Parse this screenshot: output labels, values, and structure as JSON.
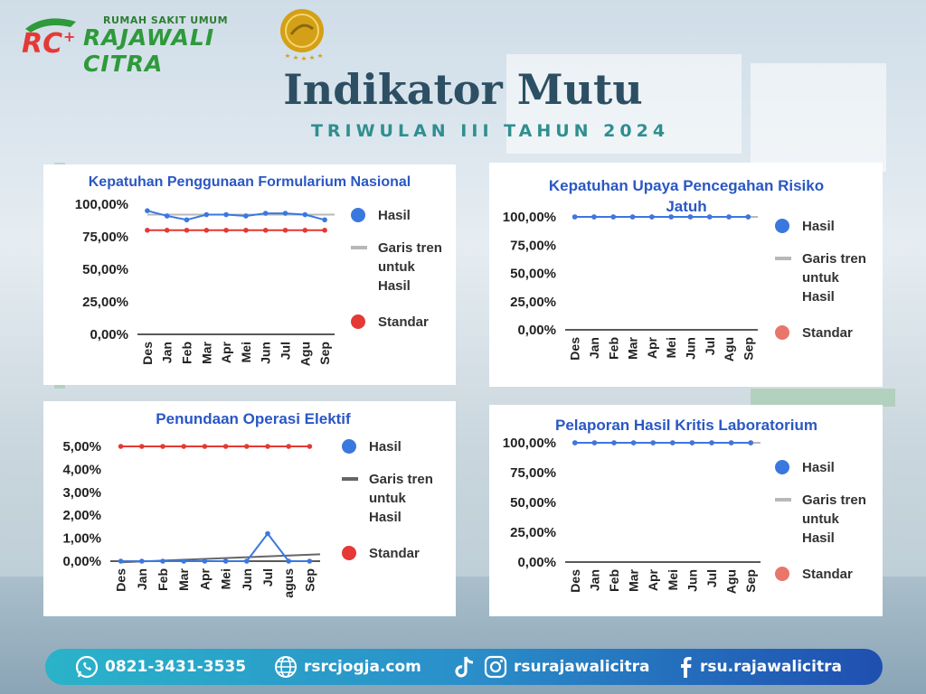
{
  "header": {
    "logo_sub": "RUMAH SAKIT UMUM",
    "logo_name": "RAJAWALI CITRA",
    "title": "Indikator Mutu",
    "subtitle": "TRIWULAN III TAHUN 2024"
  },
  "colors": {
    "hasil": "#3a78e0",
    "hasil_soft": "#e8766a",
    "standar": "#e53935",
    "trend_light": "#b8b8b8",
    "trend_dark": "#666666",
    "title_blue": "#2a57c4"
  },
  "legend": {
    "hasil": "Hasil",
    "trend": [
      "Garis tren",
      "untuk",
      "Hasil"
    ],
    "standar": "Standar"
  },
  "chart_data": [
    {
      "type": "line",
      "title": [
        "Kepatuhan Penggunaan Formularium Nasional"
      ],
      "categories": [
        "Des",
        "Jan",
        "Feb",
        "Mar",
        "Apr",
        "Mei",
        "Jun",
        "Jul",
        "Agu",
        "Sep"
      ],
      "ylim": [
        0,
        100
      ],
      "yticks": [
        "0,00%",
        "25,00%",
        "50,00%",
        "75,00%",
        "100,00%"
      ],
      "series": [
        {
          "name": "Hasil",
          "values": [
            95,
            91,
            88,
            92,
            92,
            91,
            93,
            93,
            92,
            88
          ]
        },
        {
          "name": "Standar",
          "values": [
            80,
            80,
            80,
            80,
            80,
            80,
            80,
            80,
            80,
            80
          ]
        }
      ],
      "trend": [
        92,
        92
      ],
      "legend_position": "right"
    },
    {
      "type": "line",
      "title": [
        "Kepatuhan Upaya Pencegahan Risiko",
        "Jatuh"
      ],
      "categories": [
        "Des",
        "Jan",
        "Feb",
        "Mar",
        "Apr",
        "Mei",
        "Jun",
        "Jul",
        "Agu",
        "Sep"
      ],
      "ylim": [
        0,
        100
      ],
      "yticks": [
        "0,00%",
        "25,00%",
        "50,00%",
        "75,00%",
        "100,00%"
      ],
      "series": [
        {
          "name": "Hasil",
          "values": [
            100,
            100,
            100,
            100,
            100,
            100,
            100,
            100,
            100,
            100
          ]
        },
        {
          "name": "Standar",
          "values": [
            100,
            100,
            100,
            100,
            100,
            100,
            100,
            100,
            100,
            100
          ]
        }
      ],
      "trend": [
        100,
        100
      ],
      "legend_position": "right"
    },
    {
      "type": "line",
      "title": [
        "Penundaan Operasi Elektif"
      ],
      "categories": [
        "Des",
        "Jan",
        "Feb",
        "Mar",
        "Apr",
        "Mei",
        "Jun",
        "Jul",
        "agus",
        "Sep"
      ],
      "ylim": [
        0,
        5
      ],
      "yticks": [
        "0,00%",
        "1,00%",
        "2,00%",
        "3,00%",
        "4,00%",
        "5,00%"
      ],
      "series": [
        {
          "name": "Hasil",
          "values": [
            0,
            0,
            0,
            0,
            0,
            0,
            0,
            1.2,
            0,
            0
          ]
        },
        {
          "name": "Standar",
          "values": [
            5,
            5,
            5,
            5,
            5,
            5,
            5,
            5,
            5,
            5
          ]
        }
      ],
      "trend": [
        -0.05,
        0.3
      ],
      "legend_position": "right"
    },
    {
      "type": "line",
      "title": [
        "Pelaporan Hasil Kritis Laboratorium"
      ],
      "categories": [
        "Des",
        "Jan",
        "Feb",
        "Mar",
        "Apr",
        "Mei",
        "Jun",
        "Jul",
        "Agu",
        "Sep"
      ],
      "ylim": [
        0,
        100
      ],
      "yticks": [
        "0,00%",
        "25,00%",
        "50,00%",
        "75,00%",
        "100,00%"
      ],
      "series": [
        {
          "name": "Hasil",
          "values": [
            100,
            100,
            100,
            100,
            100,
            100,
            100,
            100,
            100,
            100
          ]
        },
        {
          "name": "Standar",
          "values": [
            100,
            100,
            100,
            100,
            100,
            100,
            100,
            100,
            100,
            100
          ]
        }
      ],
      "trend": [
        100,
        100
      ],
      "legend_position": "right"
    }
  ],
  "footer": {
    "phone": "0821-3431-3535",
    "website": "rsrcjogja.com",
    "instagram": "rsurajawalicitra",
    "facebook": "rsu.rajawalicitra"
  }
}
